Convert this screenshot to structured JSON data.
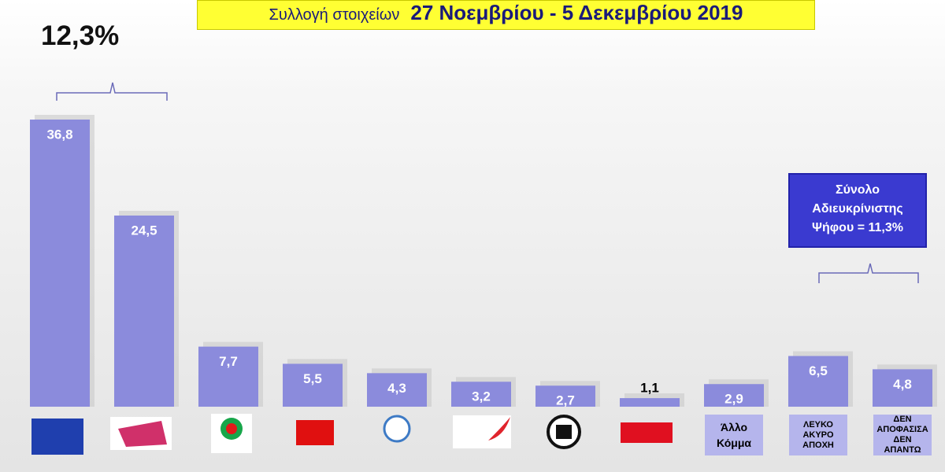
{
  "chart_data": {
    "type": "bar",
    "title_prefix": "Συλλογή στοιχείων",
    "title": "27 Νοεμβρίου - 5 Δεκεμβρίου 2019",
    "annotations": [
      "12,3%",
      "Σύνολο Αδιευκρίνιστης Ψήφου = 11,3%"
    ],
    "categories": [
      null,
      null,
      null,
      null,
      null,
      null,
      null,
      null,
      "Άλλο Κόμμα",
      "ΛΕΥΚΟ ΑΚΥΡΟ ΑΠΟΧΗ",
      "ΔΕΝ ΑΠΟΦΑΣΙΣΑ ΔΕΝ ΑΠΑΝΤΩ"
    ],
    "values": [
      36.8,
      24.5,
      7.7,
      5.5,
      4.3,
      3.2,
      2.7,
      1.1,
      2.9,
      6.5,
      4.8
    ],
    "value_labels": [
      "36,8",
      "24,5",
      "7,7",
      "5,5",
      "4,3",
      "3,2",
      "2,7",
      "1,1",
      "2,9",
      "6,5",
      "4,8"
    ],
    "color": "#8b8bdc"
  }
}
